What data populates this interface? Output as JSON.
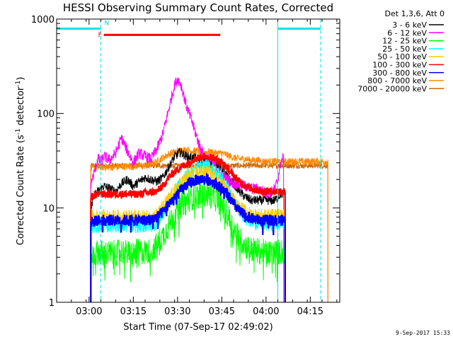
{
  "chart_data": {
    "type": "line",
    "title": "HESSI Observing Summary Count Rates, Corrected",
    "xlabel": "Start Time (07-Sep-17 02:49:02)",
    "ylabel": "Corrected Count Rate (s⁻¹ detector⁻¹)",
    "ylabel_parts": {
      "main": "Corrected Count Rate (s",
      "sup1": "-1",
      "mid": " detector",
      "sup2": "-1",
      "end": ")"
    },
    "yscale": "log",
    "ylim": [
      1,
      1000
    ],
    "xlim_minutes": [
      0,
      96
    ],
    "x_unit": "minutes after 02:49:02",
    "x_ticks": [
      {
        "label": "03:00",
        "value": 11
      },
      {
        "label": "03:15",
        "value": 26
      },
      {
        "label": "03:30",
        "value": 41
      },
      {
        "label": "03:45",
        "value": 56
      },
      {
        "label": "04:00",
        "value": 71
      },
      {
        "label": "04:15",
        "value": 86
      }
    ],
    "y_ticks": [
      {
        "label": "1",
        "value": 1
      },
      {
        "label": "10",
        "value": 10
      },
      {
        "label": "100",
        "value": 100
      },
      {
        "label": "1000",
        "value": 1000
      }
    ],
    "legend_header": "Det 1,3,6, Att 0",
    "legend_placement": "right",
    "grid": false,
    "series": [
      {
        "name": "3 - 6 keV",
        "color": "#000000",
        "x": [
          11.6,
          13,
          16,
          18,
          20,
          22,
          24,
          26,
          28,
          30,
          32,
          34,
          36,
          38,
          40,
          42,
          44,
          46,
          48,
          50,
          52,
          54,
          56,
          58,
          60,
          62,
          64,
          66,
          68,
          70,
          72,
          74,
          76,
          77.5
        ],
        "y": [
          10,
          14,
          17,
          16,
          15,
          18,
          20,
          17,
          19,
          21,
          20,
          19,
          21,
          27,
          35,
          39,
          35,
          34,
          33,
          33,
          32,
          30,
          26,
          21,
          18,
          15,
          13,
          12,
          12,
          12,
          12,
          12,
          14,
          14
        ]
      },
      {
        "name": "6 - 12 keV",
        "color": "#ff00ff",
        "x": [
          11.6,
          13,
          14,
          15,
          16,
          18,
          20,
          22,
          24,
          26,
          28,
          30,
          32,
          33,
          34,
          36,
          38,
          39,
          40,
          41,
          42,
          43,
          44,
          46,
          48,
          50,
          52,
          54,
          56,
          58,
          60,
          62,
          64,
          66,
          68,
          70,
          72,
          74,
          75,
          76,
          77
        ],
        "y": [
          18,
          25,
          34,
          30,
          35,
          32,
          38,
          55,
          40,
          30,
          38,
          35,
          33,
          37,
          42,
          60,
          110,
          150,
          200,
          230,
          210,
          160,
          120,
          80,
          50,
          35,
          32,
          28,
          22,
          20,
          18,
          18,
          17,
          16,
          16,
          15,
          14,
          16,
          20,
          30,
          35
        ]
      },
      {
        "name": "12 - 25 keV",
        "color": "#00ff00",
        "x": [
          11.6,
          14,
          16,
          18,
          20,
          22,
          24,
          26,
          28,
          30,
          32,
          34,
          36,
          38,
          40,
          42,
          44,
          46,
          48,
          50,
          52,
          54,
          56,
          58,
          60,
          62,
          64,
          66,
          68,
          70,
          72,
          74,
          76,
          77.5
        ],
        "y": [
          3,
          3.4,
          3.3,
          3.3,
          3.3,
          3.5,
          3.3,
          3.3,
          3.5,
          3.4,
          3.5,
          4,
          5,
          6.5,
          8.5,
          10.5,
          12,
          13,
          13.5,
          14,
          13.5,
          12.5,
          11,
          8.5,
          6,
          4.7,
          4,
          3.6,
          3.5,
          3.4,
          3.3,
          3.4,
          3.4,
          3.4
        ]
      },
      {
        "name": "25 - 50 keV",
        "color": "#00ffff",
        "x": [
          11.6,
          14,
          16,
          18,
          20,
          22,
          24,
          26,
          28,
          30,
          32,
          34,
          36,
          38,
          40,
          42,
          44,
          46,
          48,
          50,
          52,
          54,
          56,
          58,
          60,
          62,
          64,
          66,
          68,
          70,
          72,
          74,
          76,
          77.5
        ],
        "y": [
          6,
          6.5,
          6.5,
          6.5,
          6.5,
          6.5,
          6.5,
          6.5,
          6.5,
          6.5,
          6.6,
          7,
          8.5,
          11,
          14,
          18,
          22,
          25,
          27,
          28,
          27,
          24,
          21,
          16,
          12,
          9.5,
          8,
          7.2,
          7,
          6.8,
          6.8,
          6.8,
          6.8,
          6.8
        ]
      },
      {
        "name": "50 - 100 keV",
        "color": "#ffcc00",
        "x": [
          11.6,
          14,
          16,
          18,
          20,
          22,
          24,
          26,
          28,
          30,
          32,
          34,
          36,
          38,
          40,
          42,
          44,
          46,
          48,
          50,
          52,
          54,
          56,
          58,
          60,
          62,
          64,
          66,
          68,
          70,
          72,
          74,
          76,
          77.5
        ],
        "y": [
          8,
          8,
          8,
          8,
          8,
          8,
          8,
          8,
          8,
          8,
          8,
          8.5,
          10,
          12.5,
          15,
          18,
          21,
          23,
          24,
          24,
          23,
          21,
          18,
          14.5,
          12,
          10,
          9,
          8.5,
          8.3,
          8.2,
          8.2,
          8.2,
          8.2,
          8.2
        ]
      },
      {
        "name": "100 - 300 keV",
        "color": "#ff0000",
        "x": [
          11.6,
          14,
          16,
          18,
          20,
          22,
          24,
          26,
          28,
          30,
          32,
          34,
          36,
          38,
          40,
          42,
          44,
          46,
          48,
          50,
          52,
          54,
          56,
          58,
          60,
          62,
          64,
          66,
          68,
          70,
          72,
          74,
          76,
          77.5
        ],
        "y": [
          13,
          14,
          14,
          14,
          14,
          14,
          14,
          14,
          14,
          14.5,
          14.5,
          15,
          17,
          21,
          24,
          27,
          29,
          32,
          34,
          35,
          35,
          33,
          30,
          26,
          22,
          19,
          17,
          16,
          15.5,
          15,
          15,
          15,
          15,
          15
        ]
      },
      {
        "name": "300 - 800 keV",
        "color": "#0000ff",
        "x": [
          11.6,
          14,
          16,
          18,
          20,
          22,
          24,
          26,
          28,
          30,
          32,
          34,
          36,
          38,
          40,
          42,
          44,
          46,
          48,
          50,
          52,
          54,
          56,
          58,
          60,
          62,
          64,
          66,
          68,
          70,
          72,
          74,
          76,
          77.5
        ],
        "y": [
          7,
          7.4,
          7.4,
          7.4,
          7.4,
          7.4,
          7.4,
          7.4,
          7.4,
          7.4,
          7.5,
          8,
          9,
          11,
          13,
          15,
          17.5,
          19,
          20,
          20,
          19.5,
          18,
          16,
          13.5,
          11,
          9.2,
          8.3,
          7.7,
          7.5,
          7.4,
          7.4,
          7.4,
          7.4,
          7.4
        ]
      },
      {
        "name": "800 - 7000 keV",
        "color": "#ff8800",
        "x": [
          11.6,
          14,
          16,
          18,
          20,
          22,
          24,
          26,
          28,
          30,
          32,
          34,
          36,
          38,
          40,
          42,
          44,
          46,
          48,
          50,
          52,
          54,
          56,
          58,
          60,
          62,
          64,
          66,
          68,
          70,
          72,
          74,
          76,
          78,
          80,
          82,
          84,
          86,
          88,
          90,
          92
        ],
        "y": [
          26,
          27,
          27,
          27,
          27,
          27.5,
          27.5,
          27.5,
          28,
          28,
          29,
          31,
          34,
          37,
          39,
          41,
          41,
          40,
          40,
          39,
          39,
          38,
          38,
          36,
          34,
          33,
          33,
          32,
          32,
          31,
          31,
          31,
          31,
          31,
          31,
          31,
          31,
          31,
          31,
          31,
          31
        ]
      },
      {
        "name": "7000 - 20000 keV",
        "color": "#cc6600",
        "x": [
          11.6,
          14,
          16,
          18,
          20,
          22,
          24,
          26,
          28,
          30,
          32,
          34,
          36,
          38,
          40,
          42,
          44,
          46,
          48,
          50,
          52,
          54,
          56,
          58,
          60,
          62,
          64,
          66,
          68,
          70,
          72,
          74,
          76,
          78,
          80,
          82,
          84,
          86,
          88,
          90,
          92
        ],
        "y": [
          28,
          28,
          28,
          28,
          28,
          28,
          28,
          28,
          28,
          28,
          28,
          28,
          28,
          28,
          28,
          28,
          28,
          28,
          28,
          28,
          28,
          28,
          28,
          28,
          28,
          28,
          28,
          28,
          28,
          28,
          28,
          28,
          28,
          28,
          28,
          28,
          28,
          28,
          28,
          28,
          28
        ]
      }
    ],
    "annotations": {
      "flag_labels": [
        {
          "text": "F",
          "color": "#ff0000"
        },
        {
          "text": "N",
          "color": "#00cccc"
        }
      ],
      "night_periods": [
        [
          0,
          15
        ],
        [
          75,
          89.5
        ]
      ],
      "night_level": 790,
      "flare_interval": [
        16,
        55.5
      ],
      "flare_level": 680,
      "saa_lines": [
        15,
        89.5
      ],
      "data_gaps": [
        [
          0,
          11.6
        ],
        [
          77.5,
          96
        ]
      ]
    }
  },
  "footer": {
    "date_stamp": "9-Sep-2017 15:33"
  }
}
